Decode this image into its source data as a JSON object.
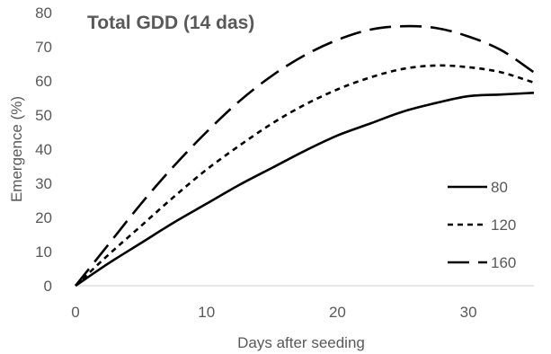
{
  "chart_data": {
    "type": "line",
    "title": "Total GDD (14 das)",
    "xlabel": "Days after seeding",
    "ylabel": "Emergence (%)",
    "xlim": [
      0,
      35
    ],
    "ylim": [
      0,
      80
    ],
    "xticks": [
      0,
      10,
      20,
      30
    ],
    "yticks": [
      0,
      10,
      20,
      30,
      40,
      50,
      60,
      70,
      80
    ],
    "grid": false,
    "legend_position": "right",
    "series": [
      {
        "name": "80",
        "dash": "solid",
        "x": [
          0,
          2.5,
          5,
          7.5,
          10,
          12.5,
          15,
          17.5,
          20,
          22.5,
          25,
          27.5,
          30,
          32.5,
          35
        ],
        "y": [
          0,
          6.5,
          12.5,
          18.5,
          24,
          29.5,
          34.5,
          39.5,
          44,
          47.5,
          51,
          53.5,
          55.5,
          56,
          56.5
        ]
      },
      {
        "name": "120",
        "dash": "short",
        "x": [
          0,
          2.5,
          5,
          7.5,
          10,
          12.5,
          15,
          17.5,
          20,
          22.5,
          25,
          27.5,
          30,
          32.5,
          35
        ],
        "y": [
          0,
          9,
          17.5,
          26,
          34,
          41,
          47.5,
          53,
          57.5,
          61,
          63.5,
          64.5,
          64,
          62.5,
          59.5
        ]
      },
      {
        "name": "160",
        "dash": "long",
        "x": [
          0,
          2.5,
          5,
          7.5,
          10,
          12.5,
          15,
          17.5,
          20,
          22.5,
          25,
          27.5,
          30,
          32.5,
          35
        ],
        "y": [
          0,
          12,
          24,
          35,
          45,
          54,
          61.5,
          67.5,
          72,
          75,
          76,
          75.5,
          73,
          69,
          62.5
        ]
      }
    ]
  }
}
